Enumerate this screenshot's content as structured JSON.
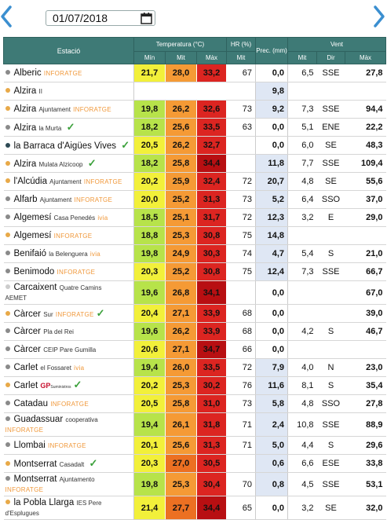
{
  "date_picker": {
    "value": "01/07/2018",
    "icon": "calendar-icon"
  },
  "nav": {
    "prev_icon": "chevron-left-icon",
    "next_icon": "chevron-right-icon"
  },
  "headers": {
    "station": "Estació",
    "temperature": "Temperatura (°C)",
    "humidity": "HR (%)",
    "precip": "Prec. (mm)",
    "wind": "Vent",
    "t_min": "Mín",
    "t_mit": "Mit",
    "t_max": "Màx",
    "hr_mit": "Mit",
    "w_mit": "Mit",
    "w_dir": "Dir",
    "w_max": "Màx"
  },
  "colors": {
    "header_bg": "#3e7a76",
    "dot_orange": "#e8a948",
    "dot_grey": "#8a8a8a",
    "dot_dark": "#2d4a55",
    "dot_empty": "#cccccc",
    "temp_yellow": "#f2f03a",
    "temp_lime": "#b7e34a",
    "temp_orange": "#f59a35",
    "temp_dark_orange": "#ec7022",
    "temp_red": "#dc2521",
    "temp_dark_red": "#b80f12",
    "precip_blue": "#dfe7f4",
    "brand_orange": "#f0983a",
    "check_green": "#3aa03a"
  },
  "rows": [
    {
      "name": "Alberic",
      "sub": "",
      "brand": "INFORATGE",
      "gp": false,
      "check": false,
      "dot": "dot_grey",
      "min": "21,7",
      "mit": "28,0",
      "max": "33,2",
      "c": [
        "temp_yellow",
        "temp_orange",
        "temp_red"
      ],
      "hr": "67",
      "prec": "0,0",
      "wet": false,
      "vmit": "6,5",
      "dir": "SSE",
      "vmax": "27,8",
      "tall": false
    },
    {
      "name": "Alzira",
      "sub": "II",
      "brand": "",
      "gp": false,
      "check": false,
      "dot": "dot_orange",
      "min": "",
      "mit": "",
      "max": "",
      "c": [
        "",
        "",
        ""
      ],
      "hr": "",
      "prec": "9,8",
      "wet": true,
      "vmit": "",
      "dir": "",
      "vmax": "",
      "tall": false
    },
    {
      "name": "Alzira",
      "sub": "Ajuntament",
      "brand": "INFORATGE",
      "gp": false,
      "check": false,
      "dot": "dot_orange",
      "min": "19,8",
      "mit": "26,2",
      "max": "32,6",
      "c": [
        "temp_lime",
        "temp_orange",
        "temp_red"
      ],
      "hr": "73",
      "prec": "9,2",
      "wet": true,
      "vmit": "7,3",
      "dir": "SSE",
      "vmax": "94,4",
      "tall": false
    },
    {
      "name": "Alzira",
      "sub": "la Murta",
      "brand": "",
      "gp": false,
      "check": true,
      "dot": "dot_grey",
      "min": "18,2",
      "mit": "25,6",
      "max": "33,5",
      "c": [
        "temp_lime",
        "temp_orange",
        "temp_red"
      ],
      "hr": "63",
      "prec": "0,0",
      "wet": false,
      "vmit": "5,1",
      "dir": "ENE",
      "vmax": "22,2",
      "tall": false
    },
    {
      "name": "la Barraca d'Aigües Vives",
      "sub": "",
      "brand": "",
      "gp": false,
      "check": true,
      "dot": "dot_dark",
      "min": "20,5",
      "mit": "26,2",
      "max": "32,7",
      "c": [
        "temp_yellow",
        "temp_orange",
        "temp_red"
      ],
      "hr": "",
      "prec": "0,0",
      "wet": false,
      "vmit": "6,0",
      "dir": "SE",
      "vmax": "48,3",
      "tall": false
    },
    {
      "name": "Alzira",
      "sub": "Mulata Alzicoop",
      "brand": "",
      "gp": false,
      "check": true,
      "dot": "dot_orange",
      "min": "18,2",
      "mit": "25,8",
      "max": "34,4",
      "c": [
        "temp_lime",
        "temp_orange",
        "temp_dark_red"
      ],
      "hr": "",
      "prec": "11,8",
      "wet": true,
      "vmit": "7,7",
      "dir": "SSE",
      "vmax": "109,4",
      "tall": false
    },
    {
      "name": "l'Alcúdia",
      "sub": "Ajuntament",
      "brand": "INFORATGE",
      "gp": false,
      "check": false,
      "dot": "dot_orange",
      "min": "20,2",
      "mit": "25,9",
      "max": "32,4",
      "c": [
        "temp_yellow",
        "temp_orange",
        "temp_red"
      ],
      "hr": "72",
      "prec": "20,7",
      "wet": true,
      "vmit": "4,8",
      "dir": "SE",
      "vmax": "55,6",
      "tall": false
    },
    {
      "name": "Alfarb",
      "sub": "Ajuntament",
      "brand": "INFORATGE",
      "gp": false,
      "check": false,
      "dot": "dot_grey",
      "min": "20,0",
      "mit": "25,2",
      "max": "31,3",
      "c": [
        "temp_yellow",
        "temp_orange",
        "temp_red"
      ],
      "hr": "73",
      "prec": "5,2",
      "wet": true,
      "vmit": "6,4",
      "dir": "SSO",
      "vmax": "37,0",
      "tall": false
    },
    {
      "name": "Algemesí",
      "sub": "Casa Penedés",
      "brand": "ivia",
      "gp": false,
      "check": false,
      "dot": "dot_grey",
      "min": "18,5",
      "mit": "25,1",
      "max": "31,7",
      "c": [
        "temp_lime",
        "temp_orange",
        "temp_red"
      ],
      "hr": "72",
      "prec": "12,3",
      "wet": true,
      "vmit": "3,2",
      "dir": "E",
      "vmax": "29,0",
      "tall": false
    },
    {
      "name": "Algemesí",
      "sub": "",
      "brand": "INFORATGE",
      "gp": false,
      "check": false,
      "dot": "dot_orange",
      "min": "18,8",
      "mit": "25,3",
      "max": "30,8",
      "c": [
        "temp_lime",
        "temp_orange",
        "temp_red"
      ],
      "hr": "75",
      "prec": "14,8",
      "wet": true,
      "vmit": "",
      "dir": "",
      "vmax": "",
      "tall": false
    },
    {
      "name": "Benifaió",
      "sub": "la Belenguera",
      "brand": "ivia",
      "gp": false,
      "check": false,
      "dot": "dot_grey",
      "min": "19,8",
      "mit": "24,9",
      "max": "30,3",
      "c": [
        "temp_lime",
        "temp_orange",
        "temp_red"
      ],
      "hr": "74",
      "prec": "4,7",
      "wet": true,
      "vmit": "5,4",
      "dir": "S",
      "vmax": "21,0",
      "tall": false
    },
    {
      "name": "Benimodo",
      "sub": "",
      "brand": "INFORATGE",
      "gp": false,
      "check": false,
      "dot": "dot_grey",
      "min": "20,3",
      "mit": "25,2",
      "max": "30,8",
      "c": [
        "temp_yellow",
        "temp_orange",
        "temp_red"
      ],
      "hr": "75",
      "prec": "12,4",
      "wet": true,
      "vmit": "7,3",
      "dir": "SSE",
      "vmax": "66,7",
      "tall": false
    },
    {
      "name": "Carcaixent",
      "sub": "Quatre Camins",
      "sub2": "AEMET",
      "brand": "",
      "gp": false,
      "check": false,
      "dot": "dot_empty",
      "min": "19,6",
      "mit": "26,8",
      "max": "34,1",
      "c": [
        "temp_lime",
        "temp_orange",
        "temp_dark_red"
      ],
      "hr": "",
      "prec": "0,0",
      "wet": false,
      "vmit": "",
      "dir": "",
      "vmax": "67,0",
      "tall": true
    },
    {
      "name": "Càrcer",
      "sub": "Sur",
      "brand": "INFORATGE",
      "gp": false,
      "check": true,
      "dot": "dot_orange",
      "min": "20,4",
      "mit": "27,1",
      "max": "33,9",
      "c": [
        "temp_yellow",
        "temp_orange",
        "temp_red"
      ],
      "hr": "68",
      "prec": "0,0",
      "wet": false,
      "vmit": "",
      "dir": "",
      "vmax": "39,0",
      "tall": false
    },
    {
      "name": "Càrcer",
      "sub": "Pla del Rei",
      "brand": "",
      "gp": false,
      "check": false,
      "dot": "dot_grey",
      "min": "19,6",
      "mit": "26,2",
      "max": "33,9",
      "c": [
        "temp_lime",
        "temp_orange",
        "temp_red"
      ],
      "hr": "68",
      "prec": "0,0",
      "wet": false,
      "vmit": "4,2",
      "dir": "S",
      "vmax": "46,7",
      "tall": false
    },
    {
      "name": "Càrcer",
      "sub": "CEIP Pare Gumilla",
      "brand": "",
      "gp": false,
      "check": false,
      "dot": "dot_grey",
      "min": "20,6",
      "mit": "27,1",
      "max": "34,7",
      "c": [
        "temp_yellow",
        "temp_orange",
        "temp_dark_red"
      ],
      "hr": "66",
      "prec": "0,0",
      "wet": false,
      "vmit": "",
      "dir": "",
      "vmax": "",
      "tall": false
    },
    {
      "name": "Carlet",
      "sub": "el Fossaret",
      "brand": "ivia",
      "gp": false,
      "check": false,
      "dot": "dot_grey",
      "min": "19,4",
      "mit": "26,0",
      "max": "33,5",
      "c": [
        "temp_lime",
        "temp_orange",
        "temp_red"
      ],
      "hr": "72",
      "prec": "7,9",
      "wet": true,
      "vmit": "4,0",
      "dir": "N",
      "vmax": "23,0",
      "tall": false
    },
    {
      "name": "Carlet",
      "sub": "",
      "brand": "",
      "gp": true,
      "check": true,
      "dot": "dot_orange",
      "min": "20,2",
      "mit": "25,3",
      "max": "30,2",
      "c": [
        "temp_yellow",
        "temp_orange",
        "temp_red"
      ],
      "hr": "76",
      "prec": "11,6",
      "wet": true,
      "vmit": "8,1",
      "dir": "S",
      "vmax": "35,4",
      "tall": false
    },
    {
      "name": "Catadau",
      "sub": "",
      "brand": "INFORATGE",
      "gp": false,
      "check": false,
      "dot": "dot_grey",
      "min": "20,5",
      "mit": "25,8",
      "max": "31,0",
      "c": [
        "temp_yellow",
        "temp_orange",
        "temp_red"
      ],
      "hr": "73",
      "prec": "5,8",
      "wet": true,
      "vmit": "4,8",
      "dir": "SSO",
      "vmax": "27,8",
      "tall": false
    },
    {
      "name": "Guadassuar",
      "sub": "cooperativa",
      "sub2": "INFORATGE",
      "brand": "",
      "gp": false,
      "check": false,
      "dot": "dot_grey",
      "min": "19,4",
      "mit": "26,1",
      "max": "31,8",
      "c": [
        "temp_lime",
        "temp_orange",
        "temp_red"
      ],
      "hr": "71",
      "prec": "2,4",
      "wet": true,
      "vmit": "10,8",
      "dir": "SSE",
      "vmax": "88,9",
      "tall": true
    },
    {
      "name": "Llombai",
      "sub": "",
      "brand": "INFORATGE",
      "gp": false,
      "check": false,
      "dot": "dot_grey",
      "min": "20,1",
      "mit": "25,6",
      "max": "31,3",
      "c": [
        "temp_yellow",
        "temp_orange",
        "temp_red"
      ],
      "hr": "71",
      "prec": "5,0",
      "wet": true,
      "vmit": "4,4",
      "dir": "S",
      "vmax": "29,6",
      "tall": false
    },
    {
      "name": "Montserrat",
      "sub": "Casadalt",
      "brand": "",
      "gp": false,
      "check": true,
      "dot": "dot_orange",
      "min": "20,3",
      "mit": "27,0",
      "max": "30,5",
      "c": [
        "temp_yellow",
        "temp_dark_orange",
        "temp_red"
      ],
      "hr": "",
      "prec": "0,6",
      "wet": true,
      "vmit": "6,6",
      "dir": "ESE",
      "vmax": "33,8",
      "tall": false
    },
    {
      "name": "Montserrat",
      "sub": "Ajuntamento",
      "sub2": "INFORATGE",
      "brand": "",
      "gp": false,
      "check": false,
      "dot": "dot_grey",
      "min": "19,8",
      "mit": "25,3",
      "max": "30,4",
      "c": [
        "temp_lime",
        "temp_orange",
        "temp_red"
      ],
      "hr": "70",
      "prec": "0,8",
      "wet": true,
      "vmit": "4,5",
      "dir": "SSE",
      "vmax": "53,1",
      "tall": true
    },
    {
      "name": "la Pobla Llarga",
      "sub": "IES Pere",
      "sub2": "d'Esplugues",
      "brand": "",
      "gp": false,
      "check": false,
      "dot": "dot_orange",
      "min": "21,4",
      "mit": "27,7",
      "max": "34,4",
      "c": [
        "temp_yellow",
        "temp_dark_orange",
        "temp_dark_red"
      ],
      "hr": "65",
      "prec": "0,0",
      "wet": false,
      "vmit": "3,2",
      "dir": "SE",
      "vmax": "32,0",
      "tall": true
    }
  ]
}
